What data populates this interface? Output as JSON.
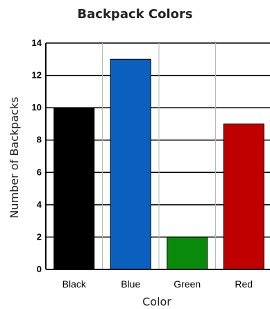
{
  "chart_data": {
    "type": "bar",
    "title": "Backpack Colors",
    "xlabel": "Color",
    "ylabel": "Number of Backpacks",
    "categories": [
      "Black",
      "Blue",
      "Green",
      "Red"
    ],
    "values": [
      10,
      13,
      2,
      9
    ],
    "colors": [
      "#000000",
      "#0a5fbf",
      "#0a8a0a",
      "#c00000"
    ],
    "ylim": [
      0,
      14
    ],
    "yticks": [
      "0",
      "2",
      "4",
      "6",
      "8",
      "10",
      "12",
      "14"
    ],
    "grid": true
  }
}
